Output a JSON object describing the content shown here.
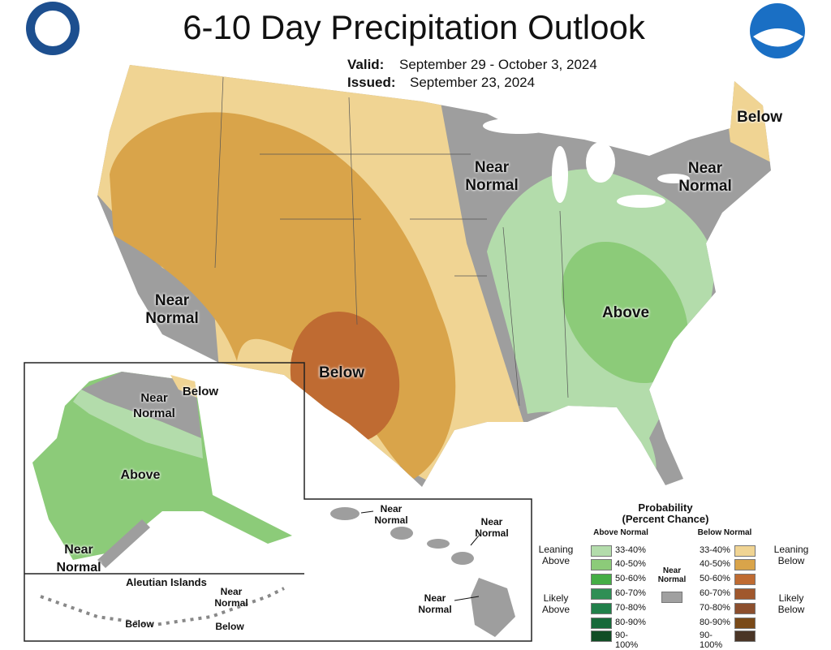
{
  "header": {
    "title": "6-10 Day Precipitation Outlook",
    "valid_label": "Valid:",
    "valid": "September 29 - October 3, 2024",
    "issued_label": "Issued:",
    "issued": "September 23, 2024"
  },
  "conus_labels": [
    "Below",
    "Near Normal",
    "Near Normal",
    "Near Normal",
    "Above",
    "Below"
  ],
  "alaska_labels": [
    "Near Normal",
    "Below",
    "Above",
    "Near Normal"
  ],
  "aleutian": {
    "title": "Aleutian Islands",
    "labels": [
      "Near Normal",
      "Below",
      "Below"
    ]
  },
  "hawaii_labels": [
    "Near Normal",
    "Near Normal",
    "Near Normal"
  ],
  "legend": {
    "title": "Probability",
    "subtitle": "(Percent Chance)",
    "above_heading": "Above Normal",
    "below_heading": "Below Normal",
    "leaning_above": "Leaning Above",
    "likely_above": "Likely Above",
    "leaning_below": "Leaning Below",
    "likely_below": "Likely Below",
    "near_normal": "Near Normal",
    "near_color": "#a0a0a0",
    "above": [
      {
        "range": "33-40%",
        "color": "#b3dcab"
      },
      {
        "range": "40-50%",
        "color": "#8ccb79"
      },
      {
        "range": "50-60%",
        "color": "#45ad45"
      },
      {
        "range": "60-70%",
        "color": "#2f8f55"
      },
      {
        "range": "70-80%",
        "color": "#21804a"
      },
      {
        "range": "80-90%",
        "color": "#176a3a"
      },
      {
        "range": "90-100%",
        "color": "#114d25"
      }
    ],
    "below": [
      {
        "range": "33-40%",
        "color": "#f0d493"
      },
      {
        "range": "40-50%",
        "color": "#d9a44a"
      },
      {
        "range": "50-60%",
        "color": "#bf6b32"
      },
      {
        "range": "60-70%",
        "color": "#a0582d"
      },
      {
        "range": "70-80%",
        "color": "#8c4f2e"
      },
      {
        "range": "80-90%",
        "color": "#7a4a18"
      },
      {
        "range": "90-100%",
        "color": "#4a3526"
      }
    ]
  }
}
